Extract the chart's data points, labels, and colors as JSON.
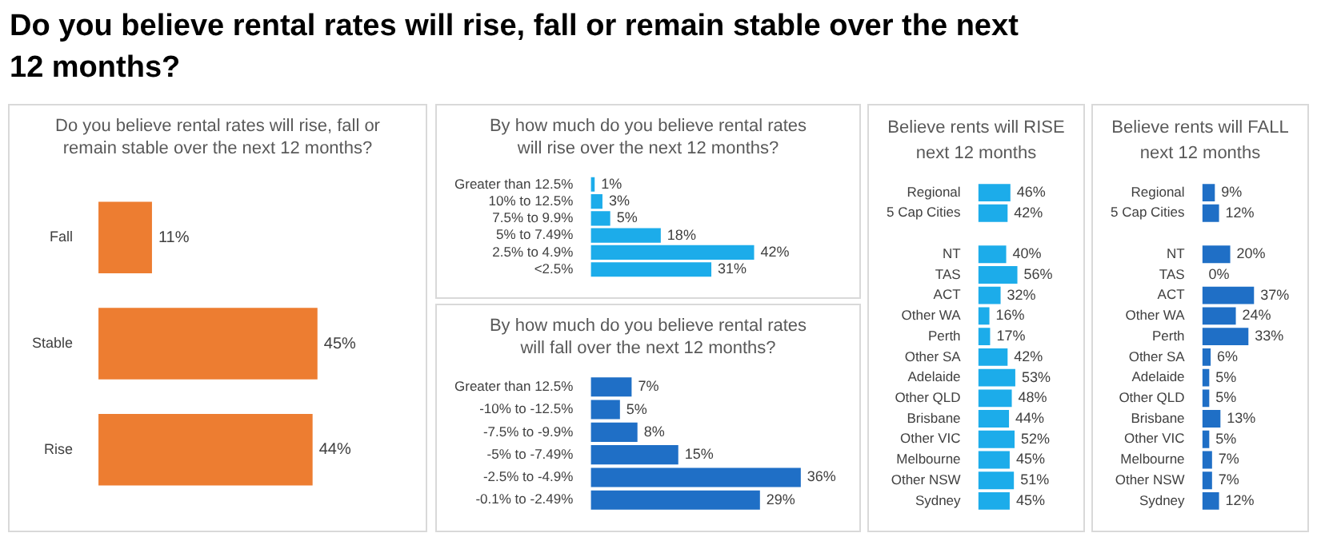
{
  "chart_data": [
    {
      "type": "bar",
      "orientation": "horizontal",
      "title": "Do you believe rental rates will rise, fall or remain stable over the next 12 months?",
      "subtitle": "Do you believe rental rates will rise, fall or remain stable over the next 12 months?",
      "categories": [
        "Fall",
        "Stable",
        "Rise"
      ],
      "values": [
        11,
        45,
        44
      ],
      "value_labels": [
        "11%",
        "45%",
        "44%"
      ],
      "color": "#ed7d31",
      "tick_labels": "y"
    },
    {
      "type": "bar",
      "orientation": "horizontal",
      "title": "By how much do you believe rental rates will rise over the next 12 months?",
      "categories": [
        "Greater than 12.5%",
        "10% to 12.5%",
        "7.5% to 9.9%",
        "5% to 7.49%",
        "2.5% to 4.9%",
        "<2.5%"
      ],
      "values": [
        1,
        3,
        5,
        18,
        42,
        31
      ],
      "value_labels": [
        "1%",
        "3%",
        "5%",
        "18%",
        "42%",
        "31%"
      ],
      "color": "#1cacea",
      "tick_labels": "y"
    },
    {
      "type": "bar",
      "orientation": "horizontal",
      "title": "By how much do you believe rental rates will fall over the next 12 months?",
      "categories": [
        "Greater than 12.5%",
        "-10% to -12.5%",
        "-7.5% to -9.9%",
        "-5% to -7.49%",
        "-2.5% to -4.9%",
        "-0.1% to -2.49%"
      ],
      "values": [
        7,
        5,
        8,
        15,
        36,
        29
      ],
      "value_labels": [
        "7%",
        "5%",
        "8%",
        "15%",
        "36%",
        "29%"
      ],
      "color": "#1f6fc6",
      "tick_labels": "y"
    },
    {
      "type": "bar",
      "orientation": "horizontal",
      "title": "Believe rents will RISE next 12 months",
      "categories": [
        "Regional",
        "5 Cap Cities",
        null,
        "NT",
        "TAS",
        "ACT",
        "Other WA",
        "Perth",
        "Other SA",
        "Adelaide",
        "Other QLD",
        "Brisbane",
        "Other VIC",
        "Melbourne",
        "Other NSW",
        "Sydney"
      ],
      "values": [
        46,
        42,
        null,
        40,
        56,
        32,
        16,
        17,
        42,
        53,
        48,
        44,
        52,
        45,
        51,
        45
      ],
      "value_labels": [
        "46%",
        "42%",
        null,
        "40%",
        "56%",
        "32%",
        "16%",
        "17%",
        "42%",
        "53%",
        "48%",
        "44%",
        "52%",
        "45%",
        "51%",
        "45%"
      ],
      "color": "#1cacea",
      "tick_labels": "y"
    },
    {
      "type": "bar",
      "orientation": "horizontal",
      "title": "Believe rents will FALL next 12 months",
      "categories": [
        "Regional",
        "5 Cap Cities",
        null,
        "NT",
        "TAS",
        "ACT",
        "Other WA",
        "Perth",
        "Other SA",
        "Adelaide",
        "Other QLD",
        "Brisbane",
        "Other VIC",
        "Melbourne",
        "Other NSW",
        "Sydney"
      ],
      "values": [
        9,
        12,
        null,
        20,
        0,
        37,
        24,
        33,
        6,
        5,
        5,
        13,
        5,
        7,
        7,
        12
      ],
      "value_labels": [
        "9%",
        "12%",
        null,
        "20%",
        "0%",
        "37%",
        "24%",
        "33%",
        "6%",
        "5%",
        "5%",
        "13%",
        "5%",
        "7%",
        "7%",
        "12%"
      ],
      "color": "#1f6fc6",
      "tick_labels": "y"
    }
  ]
}
